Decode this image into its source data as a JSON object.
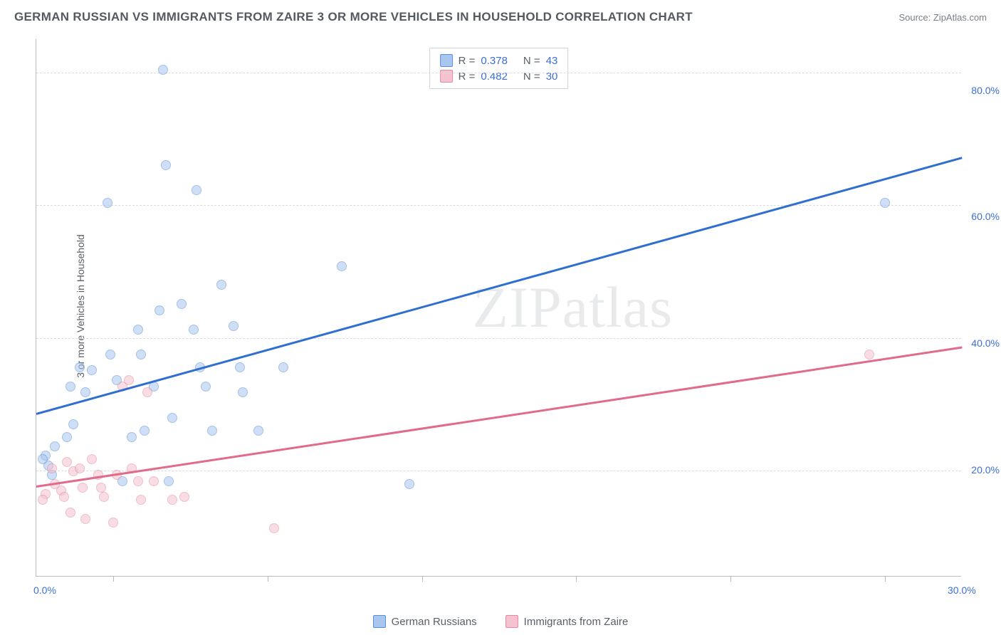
{
  "title": "GERMAN RUSSIAN VS IMMIGRANTS FROM ZAIRE 3 OR MORE VEHICLES IN HOUSEHOLD CORRELATION CHART",
  "source": "Source: ZipAtlas.com",
  "ylabel": "3 or more Vehicles in Household",
  "watermark": "ZIPatlas",
  "chart": {
    "type": "scatter",
    "background_color": "#ffffff",
    "grid_color": "#d8dbe0",
    "axis_color": "#b8bcc2",
    "text_color": "#5a5f66",
    "value_color": "#3b6fd6",
    "xlim": [
      0,
      30
    ],
    "ylim": [
      5,
      90
    ],
    "y_gridlines": [
      21.5,
      42.5,
      63.5,
      84.5
    ],
    "y_tick_labels": [
      {
        "v": 20,
        "label": "20.0%"
      },
      {
        "v": 40,
        "label": "40.0%"
      },
      {
        "v": 60,
        "label": "60.0%"
      },
      {
        "v": 80,
        "label": "80.0%"
      }
    ],
    "x_ticks_minor": [
      2.5,
      7.5,
      12.5,
      17.5,
      22.5,
      27.5
    ],
    "x_tick_labels": [
      {
        "v": 0,
        "label": "0.0%"
      },
      {
        "v": 30,
        "label": "30.0%"
      }
    ],
    "marker_radius": 7,
    "marker_opacity": 0.55,
    "series": [
      {
        "name": "German Russians",
        "fill_color": "#a9c6ee",
        "stroke_color": "#5a8fd8",
        "line_color": "#2f6fd0",
        "r": 0.378,
        "n": 43,
        "trend": {
          "x1": 0,
          "y1": 30.5,
          "x2": 30,
          "y2": 71
        },
        "points": [
          [
            0.3,
            24
          ],
          [
            0.4,
            22.5
          ],
          [
            0.2,
            23.5
          ],
          [
            0.6,
            25.5
          ],
          [
            0.5,
            21
          ],
          [
            1.0,
            27
          ],
          [
            1.2,
            29
          ],
          [
            1.1,
            35
          ],
          [
            1.4,
            38
          ],
          [
            1.6,
            34
          ],
          [
            1.8,
            37.5
          ],
          [
            2.3,
            64
          ],
          [
            2.4,
            40
          ],
          [
            2.6,
            36
          ],
          [
            2.8,
            20
          ],
          [
            3.1,
            27
          ],
          [
            3.3,
            44
          ],
          [
            3.5,
            28
          ],
          [
            3.4,
            40
          ],
          [
            3.8,
            35
          ],
          [
            4.1,
            85
          ],
          [
            4.2,
            70
          ],
          [
            4.0,
            47
          ],
          [
            4.4,
            30
          ],
          [
            4.3,
            20
          ],
          [
            4.7,
            48
          ],
          [
            5.2,
            66
          ],
          [
            5.1,
            44
          ],
          [
            5.3,
            38
          ],
          [
            5.5,
            35
          ],
          [
            5.7,
            28
          ],
          [
            6.0,
            51
          ],
          [
            6.4,
            44.5
          ],
          [
            6.7,
            34
          ],
          [
            6.6,
            38
          ],
          [
            7.2,
            28
          ],
          [
            8.0,
            38
          ],
          [
            9.9,
            54
          ],
          [
            12.1,
            19.5
          ],
          [
            27.5,
            64
          ]
        ]
      },
      {
        "name": "Immigrants from Zaire",
        "fill_color": "#f4c3cf",
        "stroke_color": "#e48aa0",
        "line_color": "#e06b8b",
        "r": 0.482,
        "n": 30,
        "trend": {
          "x1": 0,
          "y1": 19,
          "x2": 30,
          "y2": 41
        },
        "points": [
          [
            0.3,
            18
          ],
          [
            0.2,
            17
          ],
          [
            0.5,
            22
          ],
          [
            0.6,
            19.5
          ],
          [
            0.8,
            18.5
          ],
          [
            1.0,
            23
          ],
          [
            0.9,
            17.5
          ],
          [
            1.1,
            15
          ],
          [
            1.2,
            21.5
          ],
          [
            1.5,
            19
          ],
          [
            1.6,
            14
          ],
          [
            1.4,
            22
          ],
          [
            1.8,
            23.5
          ],
          [
            2.0,
            21
          ],
          [
            2.2,
            17.5
          ],
          [
            2.1,
            19
          ],
          [
            2.5,
            13.5
          ],
          [
            2.6,
            21
          ],
          [
            2.8,
            35
          ],
          [
            3.0,
            36
          ],
          [
            3.1,
            22
          ],
          [
            3.3,
            20
          ],
          [
            3.4,
            17
          ],
          [
            3.6,
            34
          ],
          [
            3.8,
            20
          ],
          [
            4.4,
            17
          ],
          [
            4.8,
            17.5
          ],
          [
            7.7,
            12.5
          ],
          [
            27.0,
            40
          ]
        ]
      }
    ]
  },
  "legend_top": [
    {
      "swatch_fill": "#a9c6ee",
      "swatch_stroke": "#5a8fd8",
      "r": "0.378",
      "n": "43"
    },
    {
      "swatch_fill": "#f4c3cf",
      "swatch_stroke": "#e48aa0",
      "r": "0.482",
      "n": "30"
    }
  ],
  "legend_bottom": [
    {
      "swatch_fill": "#a9c6ee",
      "swatch_stroke": "#5a8fd8",
      "label": "German Russians"
    },
    {
      "swatch_fill": "#f4c3cf",
      "swatch_stroke": "#e48aa0",
      "label": "Immigrants from Zaire"
    }
  ]
}
